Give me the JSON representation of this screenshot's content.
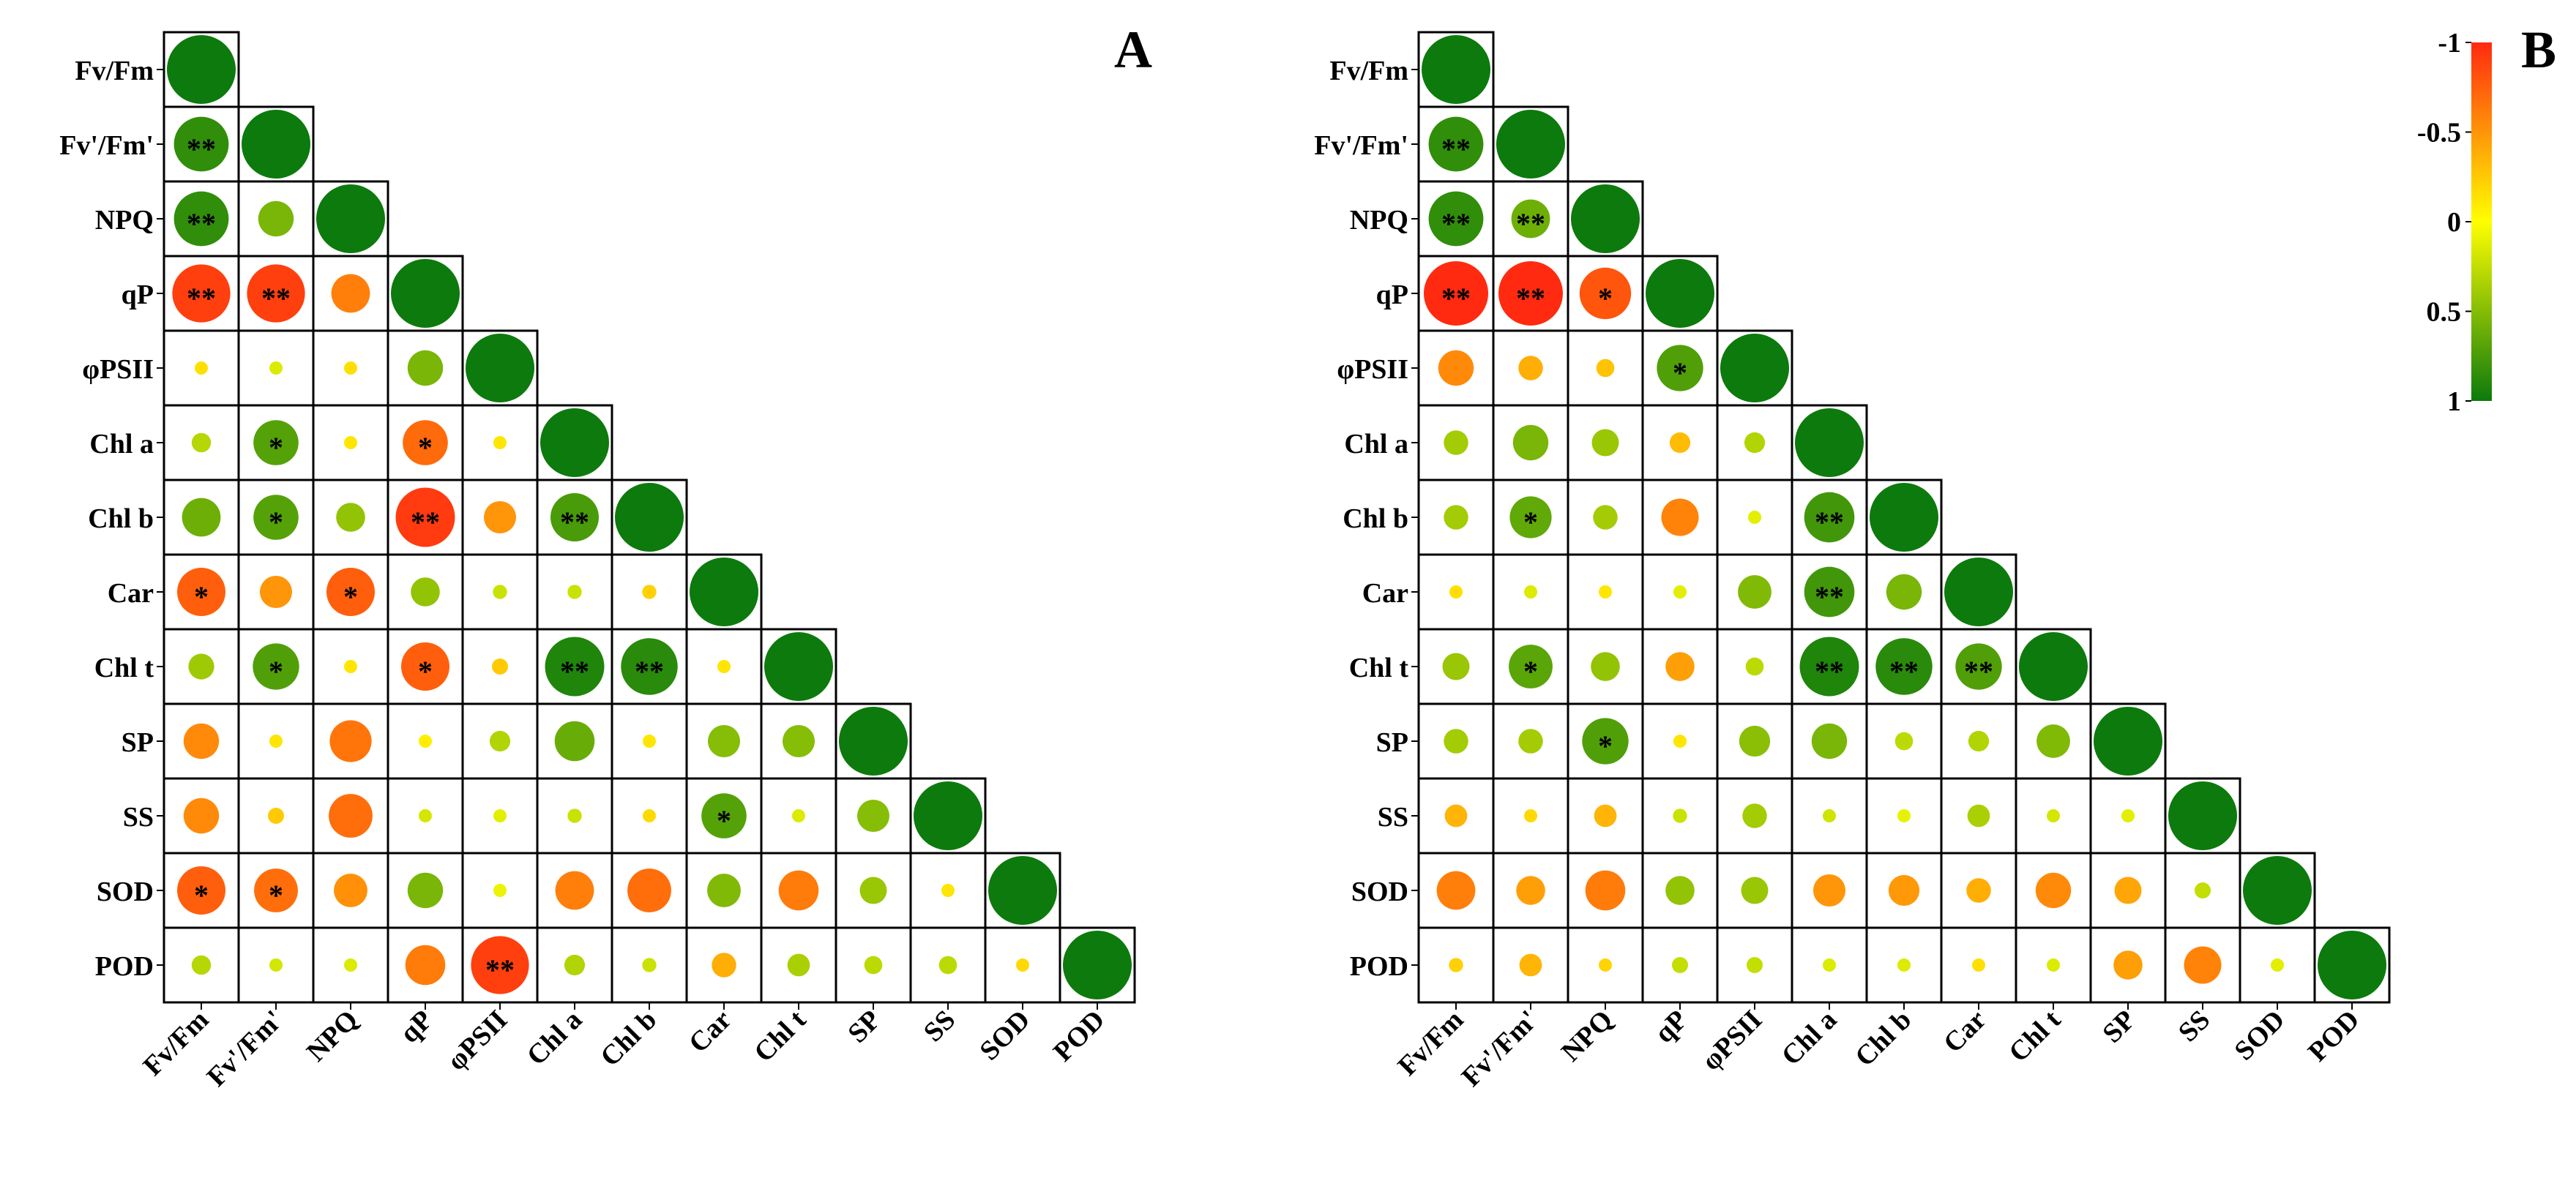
{
  "chart_data": {
    "type": "heatmap",
    "title": "",
    "variables": [
      "Fv/Fm",
      "Fv'/Fm'",
      "NPQ",
      "qP",
      "φPSII",
      "Chl a",
      "Chl b",
      "Car",
      "Chl t",
      "SP",
      "SS",
      "SOD",
      "POD"
    ],
    "colorbar": {
      "ticks": [
        "-1",
        "-0.5",
        "0",
        "0.5",
        "1"
      ],
      "range": [
        -1,
        1
      ],
      "colors": {
        "neg": "#ff2a10",
        "mid": "#ffff00",
        "pos": "#0c7a0c"
      }
    },
    "panels": [
      {
        "label": "A",
        "cells": [
          [],
          [
            [
              0.85,
              "**"
            ]
          ],
          [
            [
              0.85,
              "**"
            ],
            [
              0.55,
              ""
            ]
          ],
          [
            [
              -0.9,
              "**"
            ],
            [
              -0.9,
              "**"
            ],
            [
              -0.6,
              ""
            ]
          ],
          [
            [
              -0.15,
              ""
            ],
            [
              0.15,
              ""
            ],
            [
              -0.15,
              ""
            ],
            [
              0.55,
              ""
            ]
          ],
          [
            [
              0.3,
              ""
            ],
            [
              0.7,
              "*"
            ],
            [
              -0.12,
              ""
            ],
            [
              -0.7,
              "*"
            ],
            [
              -0.12,
              ""
            ]
          ],
          [
            [
              0.6,
              ""
            ],
            [
              0.7,
              "*"
            ],
            [
              0.45,
              ""
            ],
            [
              -0.92,
              "**"
            ],
            [
              -0.5,
              ""
            ],
            [
              0.75,
              "**"
            ]
          ],
          [
            [
              -0.75,
              "*"
            ],
            [
              -0.5,
              ""
            ],
            [
              -0.75,
              "*"
            ],
            [
              0.45,
              ""
            ],
            [
              0.22,
              ""
            ],
            [
              0.22,
              ""
            ],
            [
              -0.22,
              ""
            ]
          ],
          [
            [
              0.4,
              ""
            ],
            [
              0.72,
              "*"
            ],
            [
              -0.12,
              ""
            ],
            [
              -0.75,
              "*"
            ],
            [
              -0.25,
              ""
            ],
            [
              0.92,
              "**"
            ],
            [
              0.88,
              "**"
            ],
            [
              -0.12,
              ""
            ]
          ],
          [
            [
              -0.55,
              ""
            ],
            [
              -0.12,
              ""
            ],
            [
              -0.65,
              ""
            ],
            [
              -0.08,
              ""
            ],
            [
              0.32,
              ""
            ],
            [
              0.62,
              ""
            ],
            [
              -0.12,
              ""
            ],
            [
              0.5,
              ""
            ],
            [
              0.5,
              ""
            ]
          ],
          [
            [
              -0.55,
              ""
            ],
            [
              -0.25,
              ""
            ],
            [
              -0.68,
              ""
            ],
            [
              0.18,
              ""
            ],
            [
              0.12,
              ""
            ],
            [
              0.22,
              ""
            ],
            [
              -0.18,
              ""
            ],
            [
              0.7,
              "*"
            ],
            [
              0.15,
              ""
            ],
            [
              0.5,
              ""
            ]
          ],
          [
            [
              -0.75,
              "*"
            ],
            [
              -0.68,
              "*"
            ],
            [
              -0.52,
              ""
            ],
            [
              0.55,
              ""
            ],
            [
              0.08,
              ""
            ],
            [
              -0.6,
              ""
            ],
            [
              -0.68,
              ""
            ],
            [
              0.52,
              ""
            ],
            [
              -0.62,
              ""
            ],
            [
              0.42,
              ""
            ],
            [
              -0.12,
              ""
            ]
          ],
          [
            [
              0.3,
              ""
            ],
            [
              0.18,
              ""
            ],
            [
              0.15,
              ""
            ],
            [
              -0.62,
              ""
            ],
            [
              -0.9,
              "**"
            ],
            [
              0.32,
              ""
            ],
            [
              0.22,
              ""
            ],
            [
              -0.38,
              ""
            ],
            [
              0.35,
              ""
            ],
            [
              0.28,
              ""
            ],
            [
              0.28,
              ""
            ],
            [
              -0.18,
              ""
            ]
          ]
        ]
      },
      {
        "label": "B",
        "cells": [
          [],
          [
            [
              0.85,
              "**"
            ]
          ],
          [
            [
              0.85,
              "**"
            ],
            [
              0.6,
              "**"
            ]
          ],
          [
            [
              -1.0,
              "**"
            ],
            [
              -1.0,
              "**"
            ],
            [
              -0.8,
              "*"
            ]
          ],
          [
            [
              -0.55,
              ""
            ],
            [
              -0.38,
              ""
            ],
            [
              -0.28,
              ""
            ],
            [
              0.72,
              "*"
            ]
          ],
          [
            [
              0.38,
              ""
            ],
            [
              0.55,
              ""
            ],
            [
              0.42,
              ""
            ],
            [
              -0.32,
              ""
            ],
            [
              0.32,
              ""
            ]
          ],
          [
            [
              0.38,
              ""
            ],
            [
              0.65,
              "*"
            ],
            [
              0.38,
              ""
            ],
            [
              -0.58,
              ""
            ],
            [
              0.12,
              ""
            ],
            [
              0.78,
              "**"
            ]
          ],
          [
            [
              -0.15,
              ""
            ],
            [
              0.15,
              ""
            ],
            [
              -0.12,
              ""
            ],
            [
              0.12,
              ""
            ],
            [
              0.52,
              ""
            ],
            [
              0.78,
              "**"
            ],
            [
              0.55,
              ""
            ]
          ],
          [
            [
              0.42,
              ""
            ],
            [
              0.68,
              "*"
            ],
            [
              0.45,
              ""
            ],
            [
              -0.45,
              ""
            ],
            [
              0.28,
              ""
            ],
            [
              0.92,
              "**"
            ],
            [
              0.88,
              "**"
            ],
            [
              0.72,
              "**"
            ]
          ],
          [
            [
              0.38,
              ""
            ],
            [
              0.38,
              ""
            ],
            [
              0.72,
              "*"
            ],
            [
              -0.12,
              ""
            ],
            [
              0.48,
              ""
            ],
            [
              0.55,
              ""
            ],
            [
              0.28,
              ""
            ],
            [
              0.32,
              ""
            ],
            [
              0.52,
              ""
            ]
          ],
          [
            [
              -0.35,
              ""
            ],
            [
              -0.18,
              ""
            ],
            [
              -0.35,
              ""
            ],
            [
              0.22,
              ""
            ],
            [
              0.38,
              ""
            ],
            [
              0.2,
              ""
            ],
            [
              0.1,
              ""
            ],
            [
              0.35,
              ""
            ],
            [
              0.18,
              ""
            ],
            [
              0.12,
              ""
            ]
          ],
          [
            [
              -0.6,
              ""
            ],
            [
              -0.45,
              ""
            ],
            [
              -0.62,
              ""
            ],
            [
              0.45,
              ""
            ],
            [
              0.42,
              ""
            ],
            [
              -0.5,
              ""
            ],
            [
              -0.48,
              ""
            ],
            [
              -0.38,
              ""
            ],
            [
              -0.55,
              ""
            ],
            [
              -0.42,
              ""
            ],
            [
              0.25,
              ""
            ]
          ],
          [
            [
              -0.22,
              ""
            ],
            [
              -0.35,
              ""
            ],
            [
              -0.2,
              ""
            ],
            [
              0.25,
              ""
            ],
            [
              0.25,
              ""
            ],
            [
              0.15,
              ""
            ],
            [
              0.15,
              ""
            ],
            [
              -0.15,
              ""
            ],
            [
              0.15,
              ""
            ],
            [
              -0.45,
              ""
            ],
            [
              -0.58,
              ""
            ],
            [
              0.12,
              ""
            ]
          ]
        ]
      }
    ]
  }
}
